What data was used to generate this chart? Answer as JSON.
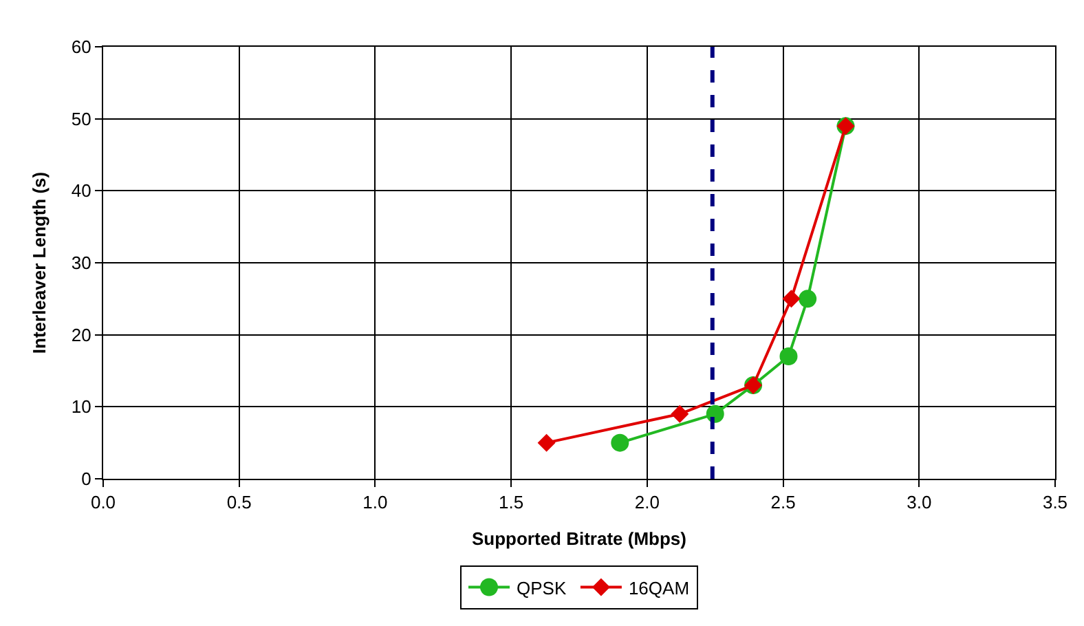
{
  "chart_data": {
    "type": "line",
    "xlabel": "Supported Bitrate (Mbps)",
    "ylabel": "Interleaver Length (s)",
    "xlim": [
      0,
      3.5
    ],
    "xticks": [
      {
        "value": 0,
        "label": "0.0"
      },
      0.5,
      {
        "value": 1,
        "label": "1.0"
      },
      1.5,
      {
        "value": 2,
        "label": "2.0"
      },
      2.5,
      {
        "value": 3,
        "label": "3.0"
      },
      3.5
    ],
    "ylim": [
      0,
      60
    ],
    "yticks": [
      0,
      10,
      20,
      30,
      40,
      50,
      60
    ],
    "grid": true,
    "legend": "bottom",
    "series": [
      {
        "name": "QPSK",
        "color": "#22b822",
        "marker": "circle",
        "x": [
          1.9,
          2.25,
          2.39,
          2.52,
          2.59,
          2.73
        ],
        "values": [
          5,
          9,
          13,
          17,
          25,
          49
        ]
      },
      {
        "name": "16QAM",
        "color": "#e00000",
        "marker": "diamond",
        "x": [
          1.63,
          2.12,
          2.39,
          2.53,
          2.73
        ],
        "values": [
          5,
          9,
          13,
          25,
          49
        ]
      }
    ],
    "ref_lines": [
      {
        "axis": "x",
        "value": 2.24,
        "color": "#000080",
        "line_style": "dashed"
      }
    ]
  }
}
